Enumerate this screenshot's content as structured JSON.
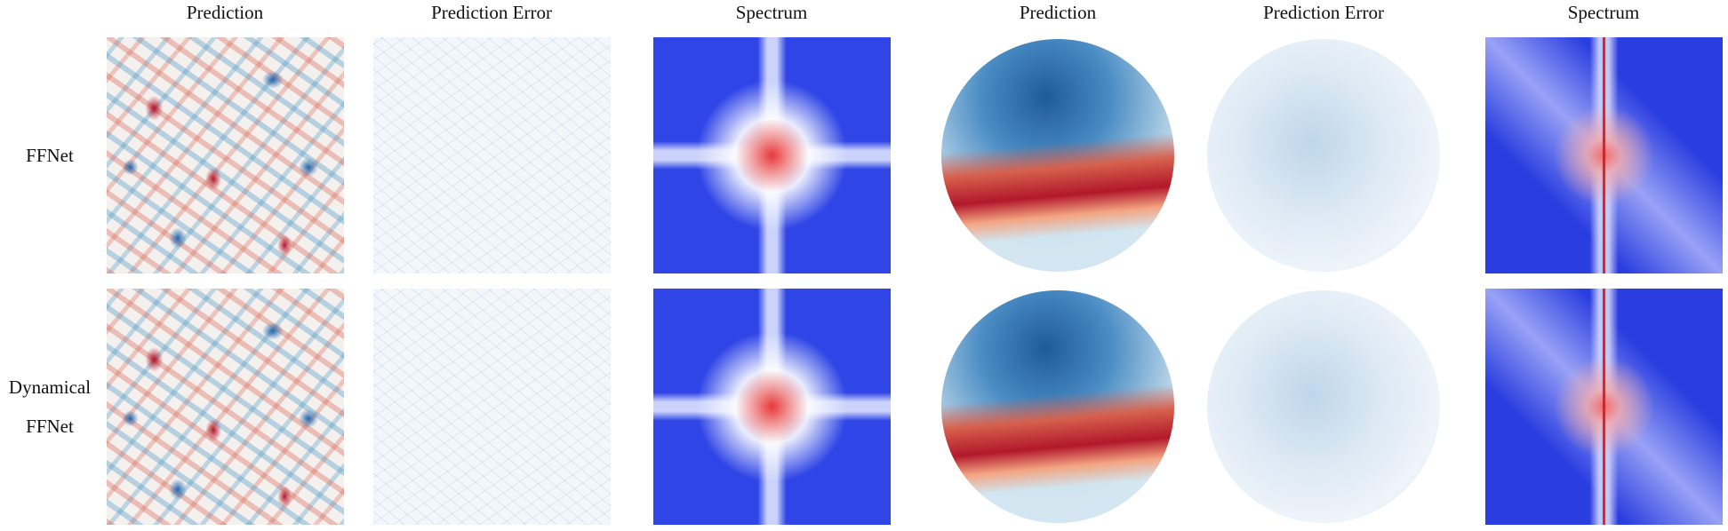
{
  "columns": [
    "Prediction",
    "Prediction Error",
    "Spectrum",
    "Prediction",
    "Prediction Error",
    "Spectrum"
  ],
  "rows": [
    {
      "label": "FFNet"
    },
    {
      "label": "Dynamical FFNet"
    }
  ]
}
